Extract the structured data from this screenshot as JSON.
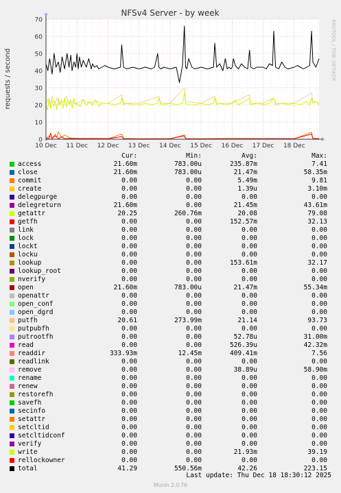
{
  "chart_data": {
    "type": "line",
    "title": "NFSv4 Server - by week",
    "ylabel": "requests / second",
    "side_label": "RRDTOOL / TOBI OETIKER",
    "ylim": [
      0,
      70
    ],
    "yticks": [
      0,
      10,
      20,
      30,
      40,
      50,
      60,
      70
    ],
    "xlim": [
      0,
      8.8
    ],
    "xticks": [
      {
        "x": 0,
        "label": "10 Dec"
      },
      {
        "x": 1,
        "label": "11 Dec"
      },
      {
        "x": 2,
        "label": "12 Dec"
      },
      {
        "x": 3,
        "label": "13 Dec"
      },
      {
        "x": 4,
        "label": "14 Dec"
      },
      {
        "x": 5,
        "label": "15 Dec"
      },
      {
        "x": 6,
        "label": "16 Dec"
      },
      {
        "x": 7,
        "label": "17 Dec"
      },
      {
        "x": 8,
        "label": "18 Dec"
      }
    ],
    "grid": true,
    "series": [
      {
        "name": "total",
        "color": "#000000",
        "x": [
          0.0,
          0.06,
          0.12,
          0.2,
          0.26,
          0.32,
          0.4,
          0.46,
          0.52,
          0.6,
          0.68,
          0.74,
          0.8,
          0.84,
          0.9,
          0.96,
          1.0,
          1.04,
          1.08,
          1.14,
          1.2,
          1.3,
          1.38,
          1.46,
          1.5,
          1.56,
          1.64,
          1.7,
          1.8,
          1.9,
          2.0,
          2.2,
          2.4,
          2.44,
          2.5,
          2.6,
          2.8,
          3.0,
          3.2,
          3.4,
          3.5,
          3.6,
          3.64,
          3.7,
          3.8,
          4.0,
          4.2,
          4.3,
          4.4,
          4.46,
          4.5,
          4.54,
          4.6,
          4.7,
          4.8,
          5.0,
          5.2,
          5.4,
          5.44,
          5.5,
          5.6,
          5.7,
          5.78,
          5.84,
          5.9,
          5.96,
          6.0,
          6.04,
          6.1,
          6.2,
          6.3,
          6.4,
          6.5,
          6.56,
          6.6,
          6.7,
          6.8,
          7.0,
          7.1,
          7.2,
          7.3,
          7.34,
          7.4,
          7.5,
          7.6,
          7.7,
          7.8,
          8.0,
          8.1,
          8.2,
          8.3,
          8.4,
          8.5,
          8.56,
          8.6,
          8.7,
          8.8
        ],
        "y": [
          44,
          40,
          47,
          38,
          50,
          42,
          45,
          39,
          48,
          41,
          50,
          42,
          49,
          40,
          45,
          42,
          50,
          41,
          48,
          42,
          46,
          42,
          47,
          41,
          44,
          42,
          43,
          41,
          42,
          43,
          42,
          41,
          42,
          55,
          42,
          41,
          42,
          41,
          42,
          41,
          42,
          50,
          42,
          41,
          42,
          41,
          42,
          33,
          43,
          66,
          42,
          41,
          47,
          42,
          41,
          42,
          41,
          42,
          56,
          42,
          44,
          40,
          47,
          41,
          42,
          41,
          42,
          47,
          43,
          41,
          44,
          42,
          41,
          52,
          42,
          41,
          42,
          42,
          41,
          44,
          43,
          63,
          42,
          41,
          45,
          42,
          41,
          42,
          43,
          42,
          41,
          42,
          43,
          63,
          45,
          42,
          47
        ]
      },
      {
        "name": "getattr",
        "color": "#ccff00",
        "x": [
          0.0,
          0.05,
          0.1,
          0.15,
          0.2,
          0.25,
          0.3,
          0.35,
          0.4,
          0.45,
          0.5,
          0.55,
          0.6,
          0.65,
          0.7,
          0.75,
          0.8,
          0.85,
          0.9,
          0.95,
          1.0,
          1.1,
          1.2,
          1.3,
          1.4,
          1.5,
          1.6,
          1.7,
          1.8,
          2.0,
          2.2,
          2.4,
          2.44,
          2.5,
          2.6,
          2.8,
          3.0,
          3.2,
          3.4,
          3.6,
          3.64,
          3.7,
          3.8,
          4.0,
          4.2,
          4.4,
          4.46,
          4.5,
          4.6,
          4.8,
          5.0,
          5.2,
          5.4,
          5.44,
          5.5,
          5.6,
          5.8,
          6.0,
          6.1,
          6.2,
          6.4,
          6.56,
          6.6,
          6.8,
          7.0,
          7.2,
          7.34,
          7.4,
          7.6,
          7.8,
          8.0,
          8.2,
          8.4,
          8.5,
          8.56,
          8.6,
          8.7,
          8.8
        ],
        "y": [
          20,
          17,
          24,
          18,
          23,
          19,
          22,
          17,
          24,
          20,
          22,
          18,
          24,
          19,
          23,
          20,
          22,
          18,
          24,
          20,
          21,
          19,
          23,
          20,
          22,
          20,
          23,
          19,
          21,
          21,
          20,
          21,
          24,
          20,
          21,
          20,
          20,
          21,
          20,
          21,
          24,
          20,
          20,
          21,
          20,
          21,
          27,
          21,
          20,
          20,
          21,
          20,
          21,
          24,
          20,
          21,
          20,
          21,
          23,
          20,
          22,
          24,
          20,
          21,
          20,
          21,
          24,
          20,
          21,
          20,
          21,
          20,
          22,
          20,
          24,
          21,
          22,
          20
        ]
      },
      {
        "name": "putfh",
        "color": "#ffcc99",
        "x": [
          0.0,
          0.06,
          0.12,
          0.2,
          0.28,
          0.36,
          0.44,
          0.5,
          0.58,
          0.66,
          0.74,
          0.8,
          0.9,
          1.0,
          1.2,
          1.4,
          1.6,
          1.8,
          2.0,
          2.44,
          2.5,
          3.0,
          3.64,
          3.7,
          4.0,
          4.46,
          4.5,
          5.0,
          5.44,
          5.5,
          6.0,
          6.56,
          6.6,
          7.0,
          7.34,
          7.4,
          8.0,
          8.56,
          8.6,
          8.8
        ],
        "y": [
          21,
          23,
          20,
          25,
          21,
          24,
          20,
          23,
          21,
          25,
          21,
          23,
          21,
          21,
          23,
          21,
          22,
          21,
          21,
          26,
          21,
          21,
          25,
          21,
          21,
          30,
          22,
          21,
          25,
          21,
          21,
          26,
          21,
          21,
          24,
          21,
          21,
          27,
          22,
          21
        ]
      },
      {
        "name": "read",
        "color": "#ff0000",
        "x": [
          0.0,
          0.1,
          0.15,
          0.2,
          0.3,
          0.4,
          0.5,
          0.6,
          0.8,
          1.0,
          1.5,
          2.0,
          2.44,
          2.5,
          3.0,
          4.0,
          4.46,
          4.5,
          5.0,
          6.0,
          7.0,
          8.0,
          8.56,
          8.6,
          8.8
        ],
        "y": [
          0.3,
          0.5,
          3.5,
          0.4,
          2,
          0.3,
          1.5,
          0.3,
          0.5,
          0.3,
          0.4,
          0.3,
          1.5,
          0.3,
          0.2,
          0.3,
          2,
          0.3,
          0.2,
          0.3,
          0.3,
          0.3,
          3,
          0.4,
          0.3
        ]
      },
      {
        "name": "lookup",
        "color": "#ff8000",
        "x": [
          0.0,
          0.1,
          0.2,
          0.3,
          0.35,
          0.4,
          0.5,
          0.6,
          0.8,
          1.0,
          2.0,
          2.44,
          2.5,
          3.0,
          4.0,
          4.46,
          4.5,
          5.0,
          6.0,
          7.0,
          8.0,
          8.56,
          8.6,
          8.8
        ],
        "y": [
          0.5,
          2,
          0.5,
          3,
          1,
          4.5,
          1,
          2.5,
          0.5,
          0.5,
          0.3,
          3,
          0.4,
          0.3,
          0.3,
          2.5,
          0.3,
          0.3,
          0.4,
          0.3,
          0.3,
          4,
          0.5,
          0.3
        ]
      }
    ]
  },
  "legend": {
    "headers": {
      "cur": "Cur:",
      "min": "Min:",
      "avg": "Avg:",
      "max": "Max:"
    },
    "rows": [
      {
        "name": "access",
        "color": "#00cc00",
        "cur": "21.60m",
        "min": "783.00u",
        "avg": "235.87m",
        "max": "7.41"
      },
      {
        "name": "close",
        "color": "#0066b3",
        "cur": "21.60m",
        "min": "783.00u",
        "avg": "21.47m",
        "max": "58.35m"
      },
      {
        "name": "commit",
        "color": "#ff8000",
        "cur": "0.00",
        "min": "0.00",
        "avg": "5.49m",
        "max": "9.81"
      },
      {
        "name": "create",
        "color": "#ffcc00",
        "cur": "0.00",
        "min": "0.00",
        "avg": "1.39u",
        "max": "3.10m"
      },
      {
        "name": "delegpurge",
        "color": "#330099",
        "cur": "0.00",
        "min": "0.00",
        "avg": "0.00",
        "max": "0.00"
      },
      {
        "name": "delegreturn",
        "color": "#990099",
        "cur": "21.60m",
        "min": "0.00",
        "avg": "21.45m",
        "max": "43.61m"
      },
      {
        "name": "getattr",
        "color": "#ccff00",
        "cur": "20.25",
        "min": "260.76m",
        "avg": "20.08",
        "max": "79.08"
      },
      {
        "name": "getfh",
        "color": "#ff0000",
        "cur": "0.00",
        "min": "0.00",
        "avg": "152.57m",
        "max": "32.13"
      },
      {
        "name": "link",
        "color": "#808080",
        "cur": "0.00",
        "min": "0.00",
        "avg": "0.00",
        "max": "0.00"
      },
      {
        "name": "lock",
        "color": "#008f00",
        "cur": "0.00",
        "min": "0.00",
        "avg": "0.00",
        "max": "0.00"
      },
      {
        "name": "lockt",
        "color": "#00487d",
        "cur": "0.00",
        "min": "0.00",
        "avg": "0.00",
        "max": "0.00"
      },
      {
        "name": "locku",
        "color": "#b35a00",
        "cur": "0.00",
        "min": "0.00",
        "avg": "0.00",
        "max": "0.00"
      },
      {
        "name": "lookup",
        "color": "#b38f00",
        "cur": "0.00",
        "min": "0.00",
        "avg": "153.61m",
        "max": "32.17"
      },
      {
        "name": "lookup_root",
        "color": "#6b006b",
        "cur": "0.00",
        "min": "0.00",
        "avg": "0.00",
        "max": "0.00"
      },
      {
        "name": "nverify",
        "color": "#8fb300",
        "cur": "0.00",
        "min": "0.00",
        "avg": "0.00",
        "max": "0.00"
      },
      {
        "name": "open",
        "color": "#b30000",
        "cur": "21.60m",
        "min": "783.00u",
        "avg": "21.47m",
        "max": "55.34m"
      },
      {
        "name": "openattr",
        "color": "#bebebe",
        "cur": "0.00",
        "min": "0.00",
        "avg": "0.00",
        "max": "0.00"
      },
      {
        "name": "open_conf",
        "color": "#80ff80",
        "cur": "0.00",
        "min": "0.00",
        "avg": "0.00",
        "max": "0.00"
      },
      {
        "name": "open_dgrd",
        "color": "#80c9ff",
        "cur": "0.00",
        "min": "0.00",
        "avg": "0.00",
        "max": "0.00"
      },
      {
        "name": "putfh",
        "color": "#ffc080",
        "cur": "20.61",
        "min": "273.99m",
        "avg": "21.14",
        "max": "93.73"
      },
      {
        "name": "putpubfh",
        "color": "#ffe680",
        "cur": "0.00",
        "min": "0.00",
        "avg": "0.00",
        "max": "0.00"
      },
      {
        "name": "putrootfh",
        "color": "#aa80ff",
        "cur": "0.00",
        "min": "0.00",
        "avg": "52.78u",
        "max": "31.00m"
      },
      {
        "name": "read",
        "color": "#ee00cc",
        "cur": "0.00",
        "min": "0.00",
        "avg": "526.39u",
        "max": "42.32m"
      },
      {
        "name": "readdir",
        "color": "#ff8080",
        "cur": "333.93m",
        "min": "12.45m",
        "avg": "409.41m",
        "max": "7.56"
      },
      {
        "name": "readlink",
        "color": "#666600",
        "cur": "0.00",
        "min": "0.00",
        "avg": "0.00",
        "max": "0.00"
      },
      {
        "name": "remove",
        "color": "#ffbfff",
        "cur": "0.00",
        "min": "0.00",
        "avg": "38.89u",
        "max": "58.90m"
      },
      {
        "name": "rename",
        "color": "#00ffcc",
        "cur": "0.00",
        "min": "0.00",
        "avg": "0.00",
        "max": "0.00"
      },
      {
        "name": "renew",
        "color": "#cc6699",
        "cur": "0.00",
        "min": "0.00",
        "avg": "0.00",
        "max": "0.00"
      },
      {
        "name": "restorefh",
        "color": "#999900",
        "cur": "0.00",
        "min": "0.00",
        "avg": "0.00",
        "max": "0.00"
      },
      {
        "name": "savefh",
        "color": "#00cc00",
        "cur": "0.00",
        "min": "0.00",
        "avg": "0.00",
        "max": "0.00"
      },
      {
        "name": "secinfo",
        "color": "#0066b3",
        "cur": "0.00",
        "min": "0.00",
        "avg": "0.00",
        "max": "0.00"
      },
      {
        "name": "setattr",
        "color": "#ff8000",
        "cur": "0.00",
        "min": "0.00",
        "avg": "0.00",
        "max": "0.00"
      },
      {
        "name": "setcltid",
        "color": "#ffcc00",
        "cur": "0.00",
        "min": "0.00",
        "avg": "0.00",
        "max": "0.00"
      },
      {
        "name": "setcltidconf",
        "color": "#330099",
        "cur": "0.00",
        "min": "0.00",
        "avg": "0.00",
        "max": "0.00"
      },
      {
        "name": "verify",
        "color": "#990099",
        "cur": "0.00",
        "min": "0.00",
        "avg": "0.00",
        "max": "0.00"
      },
      {
        "name": "write",
        "color": "#ccff00",
        "cur": "0.00",
        "min": "0.00",
        "avg": "21.93m",
        "max": "39.19"
      },
      {
        "name": "rellockowner",
        "color": "#ff0000",
        "cur": "0.00",
        "min": "0.00",
        "avg": "0.00",
        "max": "0.00"
      },
      {
        "name": "total",
        "color": "#000000",
        "cur": "41.29",
        "min": "550.56m",
        "avg": "42.26",
        "max": "223.15"
      }
    ]
  },
  "footer": {
    "last_update": "Last update: Thu Dec 18 18:30:12 2025",
    "version": "Munin 2.0.76"
  }
}
